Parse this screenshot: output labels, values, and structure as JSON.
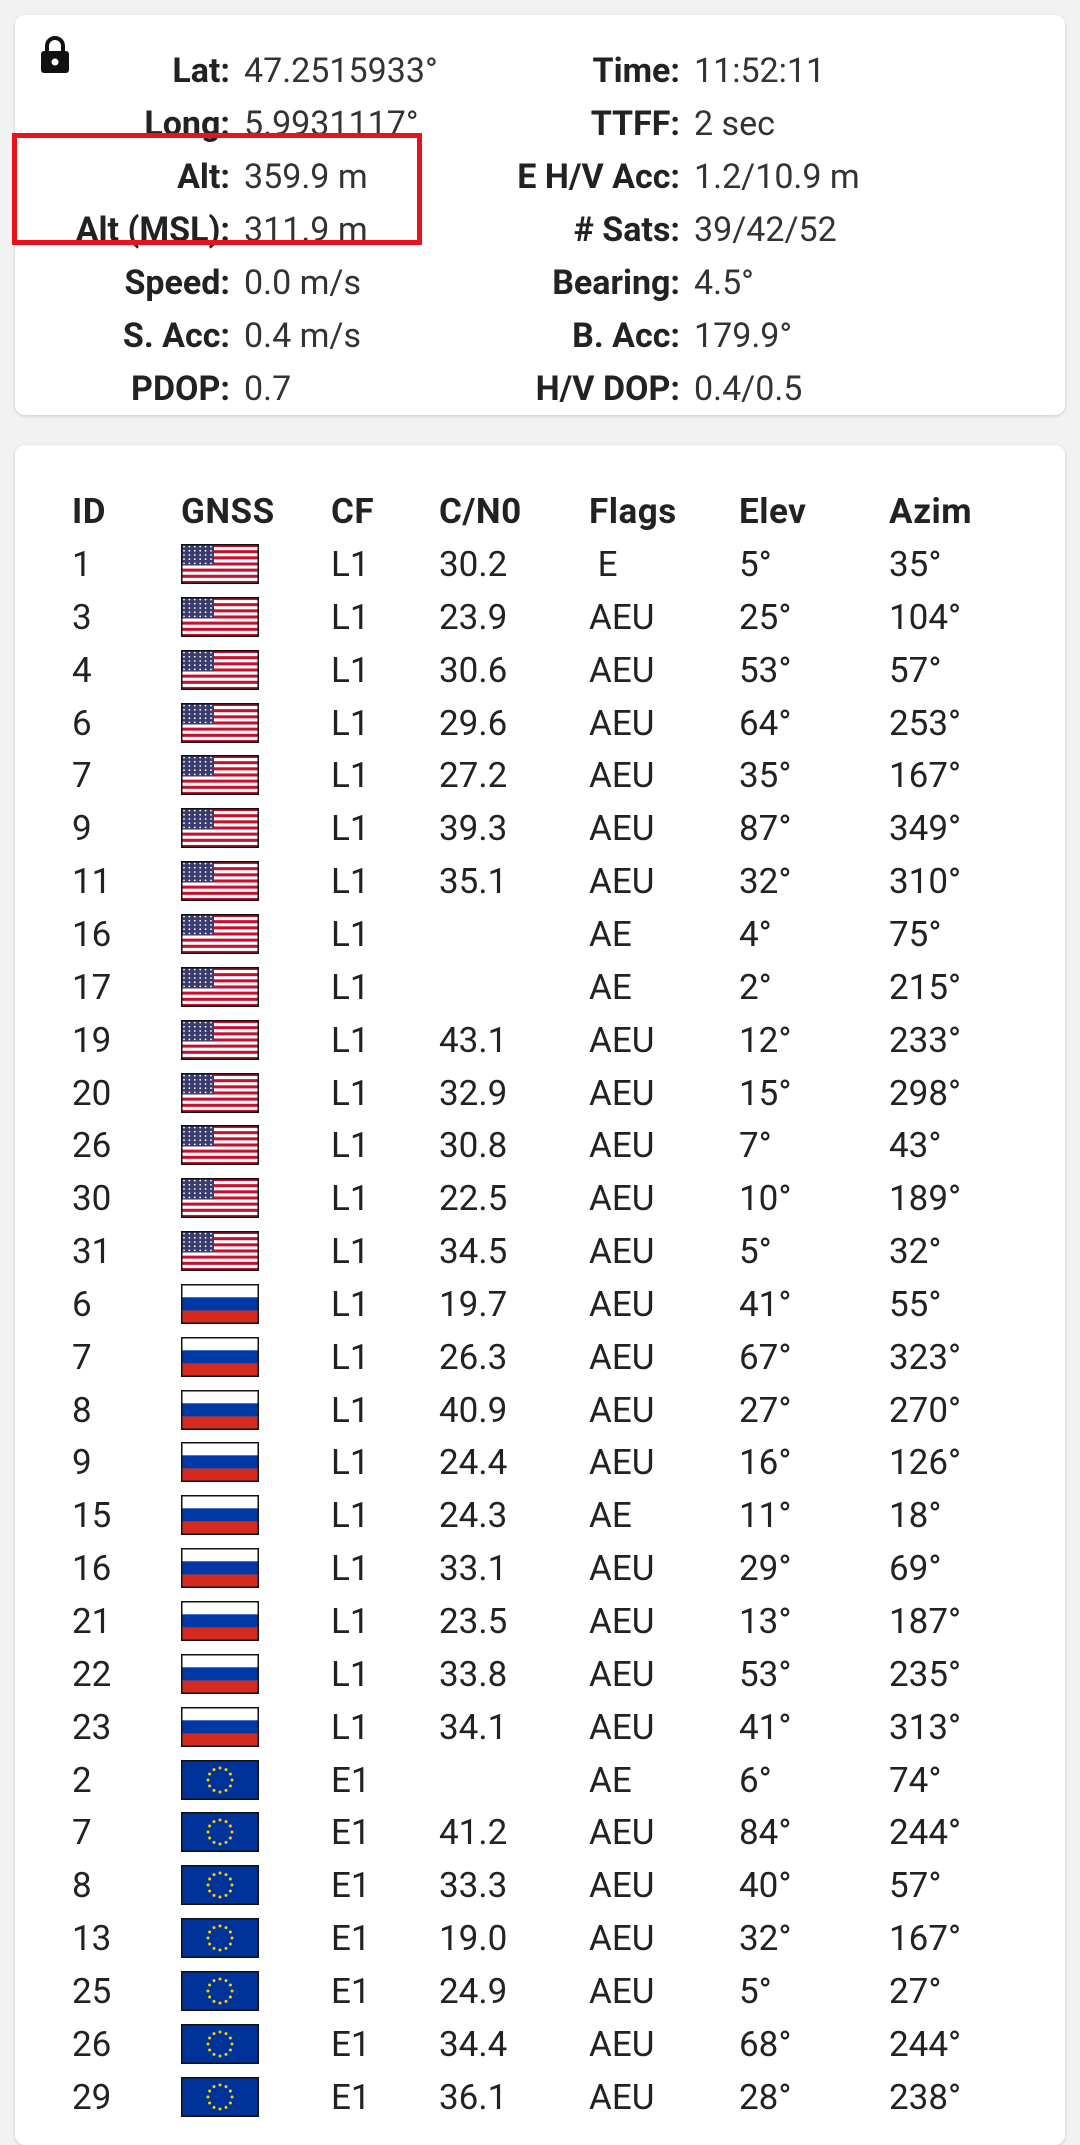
{
  "status": {
    "lock_icon": "lock-icon",
    "rows": [
      {
        "label1": "Lat:",
        "value1": "47.2515933°",
        "label2": "Time:",
        "value2": "11:52:11"
      },
      {
        "label1": "Long:",
        "value1": "5.9931117°",
        "label2": "TTFF:",
        "value2": "2 sec"
      },
      {
        "label1": "Alt:",
        "value1": "359.9 m",
        "label2": "E H/V Acc:",
        "value2": "1.2/10.9 m"
      },
      {
        "label1": "Alt (MSL):",
        "value1": "311.9 m",
        "label2": "# Sats:",
        "value2": "39/42/52"
      },
      {
        "label1": "Speed:",
        "value1": "0.0 m/s",
        "label2": "Bearing:",
        "value2": "4.5°"
      },
      {
        "label1": "S. Acc:",
        "value1": "0.4 m/s",
        "label2": "B. Acc:",
        "value2": "179.9°"
      },
      {
        "label1": "PDOP:",
        "value1": "0.7",
        "label2": "H/V DOP:",
        "value2": "0.4/0.5"
      }
    ],
    "highlight_color": "#e8121c"
  },
  "satellites": {
    "headers": {
      "id": "ID",
      "gnss": "GNSS",
      "cf": "CF",
      "cn0": "C/N0",
      "flags": "Flags",
      "elev": "Elev",
      "azim": "Azim"
    },
    "rows": [
      {
        "id": "1",
        "gnss": "usa",
        "cf": "L1",
        "cn0": "30.2",
        "flags": " E",
        "elev": "5°",
        "azim": "35°"
      },
      {
        "id": "3",
        "gnss": "usa",
        "cf": "L1",
        "cn0": "23.9",
        "flags": "AEU",
        "elev": "25°",
        "azim": "104°"
      },
      {
        "id": "4",
        "gnss": "usa",
        "cf": "L1",
        "cn0": "30.6",
        "flags": "AEU",
        "elev": "53°",
        "azim": "57°"
      },
      {
        "id": "6",
        "gnss": "usa",
        "cf": "L1",
        "cn0": "29.6",
        "flags": "AEU",
        "elev": "64°",
        "azim": "253°"
      },
      {
        "id": "7",
        "gnss": "usa",
        "cf": "L1",
        "cn0": "27.2",
        "flags": "AEU",
        "elev": "35°",
        "azim": "167°"
      },
      {
        "id": "9",
        "gnss": "usa",
        "cf": "L1",
        "cn0": "39.3",
        "flags": "AEU",
        "elev": "87°",
        "azim": "349°"
      },
      {
        "id": "11",
        "gnss": "usa",
        "cf": "L1",
        "cn0": "35.1",
        "flags": "AEU",
        "elev": "32°",
        "azim": "310°"
      },
      {
        "id": "16",
        "gnss": "usa",
        "cf": "L1",
        "cn0": "",
        "flags": "AE",
        "elev": "4°",
        "azim": "75°"
      },
      {
        "id": "17",
        "gnss": "usa",
        "cf": "L1",
        "cn0": "",
        "flags": "AE",
        "elev": "2°",
        "azim": "215°"
      },
      {
        "id": "19",
        "gnss": "usa",
        "cf": "L1",
        "cn0": "43.1",
        "flags": "AEU",
        "elev": "12°",
        "azim": "233°"
      },
      {
        "id": "20",
        "gnss": "usa",
        "cf": "L1",
        "cn0": "32.9",
        "flags": "AEU",
        "elev": "15°",
        "azim": "298°"
      },
      {
        "id": "26",
        "gnss": "usa",
        "cf": "L1",
        "cn0": "30.8",
        "flags": "AEU",
        "elev": "7°",
        "azim": "43°"
      },
      {
        "id": "30",
        "gnss": "usa",
        "cf": "L1",
        "cn0": "22.5",
        "flags": "AEU",
        "elev": "10°",
        "azim": "189°"
      },
      {
        "id": "31",
        "gnss": "usa",
        "cf": "L1",
        "cn0": "34.5",
        "flags": "AEU",
        "elev": "5°",
        "azim": "32°"
      },
      {
        "id": "6",
        "gnss": "russia",
        "cf": "L1",
        "cn0": "19.7",
        "flags": "AEU",
        "elev": "41°",
        "azim": "55°"
      },
      {
        "id": "7",
        "gnss": "russia",
        "cf": "L1",
        "cn0": "26.3",
        "flags": "AEU",
        "elev": "67°",
        "azim": "323°"
      },
      {
        "id": "8",
        "gnss": "russia",
        "cf": "L1",
        "cn0": "40.9",
        "flags": "AEU",
        "elev": "27°",
        "azim": "270°"
      },
      {
        "id": "9",
        "gnss": "russia",
        "cf": "L1",
        "cn0": "24.4",
        "flags": "AEU",
        "elev": "16°",
        "azim": "126°"
      },
      {
        "id": "15",
        "gnss": "russia",
        "cf": "L1",
        "cn0": "24.3",
        "flags": "AE",
        "elev": "11°",
        "azim": "18°"
      },
      {
        "id": "16",
        "gnss": "russia",
        "cf": "L1",
        "cn0": "33.1",
        "flags": "AEU",
        "elev": "29°",
        "azim": "69°"
      },
      {
        "id": "21",
        "gnss": "russia",
        "cf": "L1",
        "cn0": "23.5",
        "flags": "AEU",
        "elev": "13°",
        "azim": "187°"
      },
      {
        "id": "22",
        "gnss": "russia",
        "cf": "L1",
        "cn0": "33.8",
        "flags": "AEU",
        "elev": "53°",
        "azim": "235°"
      },
      {
        "id": "23",
        "gnss": "russia",
        "cf": "L1",
        "cn0": "34.1",
        "flags": "AEU",
        "elev": "41°",
        "azim": "313°"
      },
      {
        "id": "2",
        "gnss": "eu",
        "cf": "E1",
        "cn0": "",
        "flags": "AE",
        "elev": "6°",
        "azim": "74°"
      },
      {
        "id": "7",
        "gnss": "eu",
        "cf": "E1",
        "cn0": "41.2",
        "flags": "AEU",
        "elev": "84°",
        "azim": "244°"
      },
      {
        "id": "8",
        "gnss": "eu",
        "cf": "E1",
        "cn0": "33.3",
        "flags": "AEU",
        "elev": "40°",
        "azim": "57°"
      },
      {
        "id": "13",
        "gnss": "eu",
        "cf": "E1",
        "cn0": "19.0",
        "flags": "AEU",
        "elev": "32°",
        "azim": "167°"
      },
      {
        "id": "25",
        "gnss": "eu",
        "cf": "E1",
        "cn0": "24.9",
        "flags": "AEU",
        "elev": "5°",
        "azim": "27°"
      },
      {
        "id": "26",
        "gnss": "eu",
        "cf": "E1",
        "cn0": "34.4",
        "flags": "AEU",
        "elev": "68°",
        "azim": "244°"
      },
      {
        "id": "29",
        "gnss": "eu",
        "cf": "E1",
        "cn0": "36.1",
        "flags": "AEU",
        "elev": "28°",
        "azim": "238°"
      }
    ]
  }
}
